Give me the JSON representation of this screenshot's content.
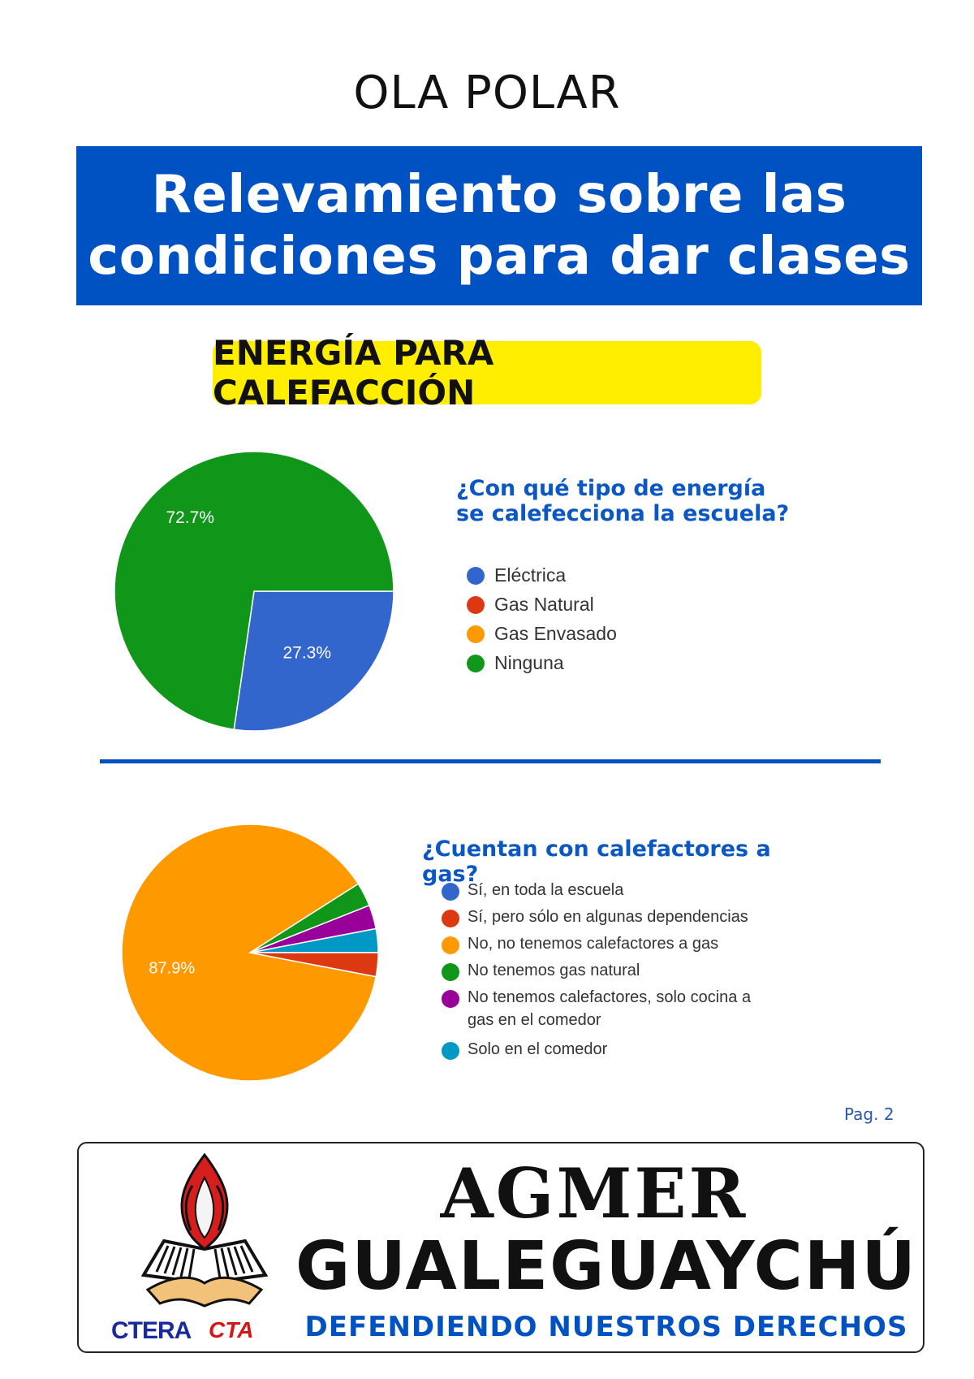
{
  "header": {
    "title": "OLA POLAR",
    "banner_title": "Relevamiento sobre las condiciones para dar clases",
    "section_tag": "ENERGÍA PARA CALEFACCIÓN"
  },
  "colors": {
    "banner": "#0052c2",
    "section_tag": "#ffee00",
    "question_text": "#0b57c4",
    "blue": "#3366cc",
    "red": "#dc3912",
    "orange": "#ff9900",
    "green": "#109618",
    "purple": "#990099",
    "cyan": "#0099c6"
  },
  "charts": {
    "energy": {
      "question": "¿Con qué tipo de energía se calefecciona la escuela?"
    },
    "heaters": {
      "question": "¿Cuentan con calefactores a gas?"
    }
  },
  "chart_data": [
    {
      "type": "pie",
      "title": "¿Con qué tipo de energía se calefecciona la escuela?",
      "categories": [
        "Eléctrica",
        "Gas Natural",
        "Gas Envasado",
        "Ninguna"
      ],
      "values": [
        27.3,
        0,
        0,
        72.7
      ],
      "labels": [
        "27.3%",
        "",
        "",
        "72.7%"
      ],
      "colors": [
        "#3366cc",
        "#dc3912",
        "#ff9900",
        "#109618"
      ],
      "legend": "right"
    },
    {
      "type": "pie",
      "title": "¿Cuentan con calefactores a gas?",
      "categories": [
        "Sí, en toda la escuela",
        "Sí, pero sólo en algunas dependencias",
        "No, no tenemos calefactores a gas",
        "No tenemos gas natural",
        "No tenemos calefactores, solo cocina a gas en el comedor",
        "Solo en el comedor"
      ],
      "values": [
        0,
        3,
        87.9,
        3,
        3,
        3
      ],
      "labels": [
        "",
        "",
        "87.9%",
        "",
        "",
        ""
      ],
      "colors": [
        "#3366cc",
        "#dc3912",
        "#ff9900",
        "#109618",
        "#990099",
        "#0099c6"
      ],
      "legend": "right"
    }
  ],
  "footer": {
    "page_label": "Pag. 2",
    "org_name": "AGMER",
    "city": "GUALEGUAYCHÚ",
    "motto": "DEFENDIENDO NUESTROS DERECHOS",
    "logo_ctera": "CTERA",
    "logo_cta": "CTA"
  }
}
